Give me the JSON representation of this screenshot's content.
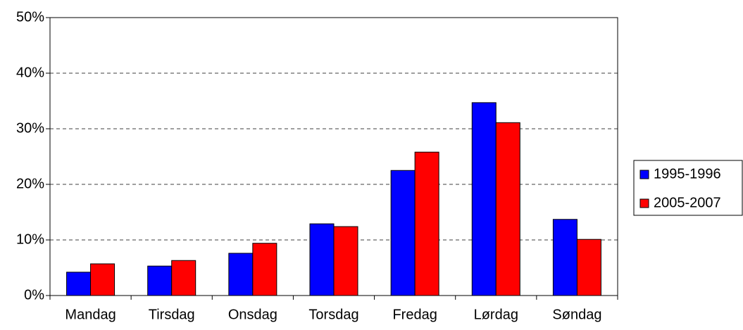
{
  "chart_data": {
    "type": "bar",
    "categories": [
      "Mandag",
      "Tirsdag",
      "Onsdag",
      "Torsdag",
      "Fredag",
      "Lørdag",
      "Søndag"
    ],
    "series": [
      {
        "name": "1995-1996",
        "color": "#0000ff",
        "values": [
          4.2,
          5.3,
          7.6,
          12.9,
          22.5,
          34.7,
          13.7
        ]
      },
      {
        "name": "2005-2007",
        "color": "#ff0000",
        "values": [
          5.7,
          6.3,
          9.4,
          12.4,
          25.8,
          31.1,
          10.1
        ]
      }
    ],
    "ylim": [
      0,
      50
    ],
    "yticks": [
      {
        "value": 0,
        "label": "0%"
      },
      {
        "value": 10,
        "label": "10%"
      },
      {
        "value": 20,
        "label": "20%"
      },
      {
        "value": 30,
        "label": "30%"
      },
      {
        "value": 40,
        "label": "40%"
      },
      {
        "value": 50,
        "label": "50%"
      }
    ],
    "grid": true,
    "legend": "right"
  }
}
